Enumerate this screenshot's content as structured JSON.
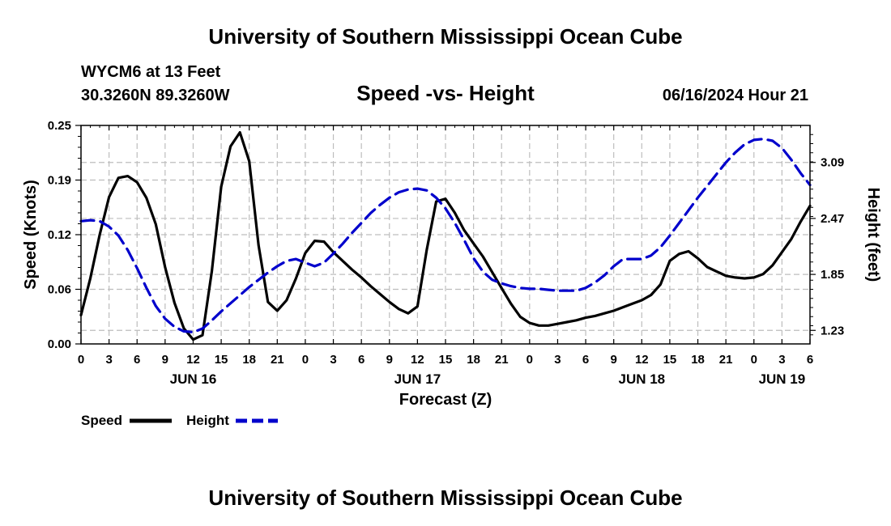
{
  "header": {
    "title": "University of Southern Mississippi Ocean Cube",
    "station": "WYCM6 at 13 Feet",
    "location": "30.3260N  89.3260W",
    "timestamp": "06/16/2024 Hour 21",
    "footer_title": "University of Southern Mississippi Ocean Cube"
  },
  "chart_data": {
    "type": "line",
    "title": "Speed -vs- Height",
    "xlabel": "Forecast (Z)",
    "ylabel": "Speed (Knots)",
    "y2label": "Height (feet)",
    "x_unit": "hours since JUN 16 00Z",
    "xlim": [
      0,
      78
    ],
    "ylim": [
      0,
      0.25
    ],
    "y2lim": [
      1.08,
      3.5
    ],
    "x_ticks": [
      0,
      3,
      6,
      9,
      12,
      15,
      18,
      21,
      24,
      27,
      30,
      33,
      36,
      39,
      42,
      45,
      48,
      51,
      54,
      57,
      60,
      63,
      66,
      69,
      72,
      75,
      78
    ],
    "x_tick_labels": [
      "0",
      "3",
      "6",
      "9",
      "12",
      "15",
      "18",
      "21",
      "0",
      "3",
      "6",
      "9",
      "12",
      "15",
      "18",
      "21",
      "0",
      "3",
      "6",
      "9",
      "12",
      "15",
      "18",
      "21",
      "0",
      "3",
      "6"
    ],
    "y_ticks": [
      0,
      0.0625,
      0.125,
      0.1875,
      0.25
    ],
    "y_tick_labels": [
      "0.00",
      "0.06",
      "0.12",
      "0.19",
      "0.25"
    ],
    "y2_ticks": [
      1.23,
      1.85,
      2.47,
      3.09
    ],
    "y2_tick_labels": [
      "1.23",
      "1.85",
      "2.47",
      "3.09"
    ],
    "day_labels": [
      {
        "x": 12,
        "label": "JUN 16"
      },
      {
        "x": 36,
        "label": "JUN 17"
      },
      {
        "x": 60,
        "label": "JUN 18"
      },
      {
        "x": 75,
        "label": "JUN 19"
      }
    ],
    "grid": true,
    "series": [
      {
        "name": "Speed",
        "axis": "left",
        "color": "#000000",
        "dash": "solid",
        "x": [
          0,
          1,
          2,
          3,
          4,
          5,
          6,
          7,
          8,
          9,
          10,
          11,
          12,
          13,
          14,
          15,
          16,
          17,
          18,
          19,
          20,
          21,
          22,
          23,
          24,
          25,
          26,
          27,
          28,
          29,
          30,
          31,
          32,
          33,
          34,
          35,
          36,
          37,
          38,
          39,
          40,
          41,
          42,
          43,
          44,
          45,
          46,
          47,
          48,
          49,
          50,
          51,
          52,
          53,
          54,
          55,
          56,
          57,
          58,
          59,
          60,
          61,
          62,
          63,
          64,
          65,
          66,
          67,
          68,
          69,
          70,
          71,
          72,
          73,
          74,
          75,
          76,
          77,
          78
        ],
        "values": [
          0.033,
          0.075,
          0.125,
          0.168,
          0.19,
          0.192,
          0.185,
          0.167,
          0.137,
          0.088,
          0.047,
          0.018,
          0.005,
          0.01,
          0.083,
          0.18,
          0.226,
          0.242,
          0.209,
          0.113,
          0.048,
          0.038,
          0.05,
          0.075,
          0.104,
          0.118,
          0.117,
          0.105,
          0.095,
          0.085,
          0.076,
          0.066,
          0.057,
          0.048,
          0.04,
          0.035,
          0.043,
          0.108,
          0.163,
          0.166,
          0.15,
          0.13,
          0.115,
          0.1,
          0.082,
          0.064,
          0.046,
          0.031,
          0.024,
          0.021,
          0.021,
          0.023,
          0.025,
          0.027,
          0.03,
          0.032,
          0.035,
          0.038,
          0.042,
          0.046,
          0.05,
          0.056,
          0.068,
          0.095,
          0.103,
          0.106,
          0.098,
          0.088,
          0.083,
          0.078,
          0.076,
          0.075,
          0.076,
          0.08,
          0.09,
          0.105,
          0.12,
          0.14,
          0.158
        ]
      },
      {
        "name": "Height",
        "axis": "right",
        "color": "#0000cc",
        "dash": "dashed",
        "x": [
          0,
          1,
          2,
          3,
          4,
          5,
          6,
          7,
          8,
          9,
          10,
          11,
          12,
          13,
          14,
          15,
          16,
          17,
          18,
          19,
          20,
          21,
          22,
          23,
          24,
          25,
          26,
          27,
          28,
          29,
          30,
          31,
          32,
          33,
          34,
          35,
          36,
          37,
          38,
          39,
          40,
          41,
          42,
          43,
          44,
          45,
          46,
          47,
          48,
          49,
          50,
          51,
          52,
          53,
          54,
          55,
          56,
          57,
          58,
          59,
          60,
          61,
          62,
          63,
          64,
          65,
          66,
          67,
          68,
          69,
          70,
          71,
          72,
          73,
          74,
          75,
          76,
          77,
          78
        ],
        "values": [
          2.44,
          2.45,
          2.44,
          2.38,
          2.28,
          2.12,
          1.92,
          1.7,
          1.5,
          1.36,
          1.27,
          1.22,
          1.21,
          1.25,
          1.34,
          1.44,
          1.53,
          1.62,
          1.71,
          1.79,
          1.87,
          1.94,
          2.0,
          2.02,
          1.98,
          1.94,
          1.98,
          2.08,
          2.19,
          2.31,
          2.42,
          2.53,
          2.62,
          2.7,
          2.76,
          2.79,
          2.8,
          2.78,
          2.7,
          2.58,
          2.42,
          2.23,
          2.03,
          1.88,
          1.79,
          1.75,
          1.72,
          1.7,
          1.69,
          1.69,
          1.68,
          1.67,
          1.67,
          1.67,
          1.7,
          1.76,
          1.84,
          1.94,
          2.02,
          2.02,
          2.02,
          2.06,
          2.15,
          2.28,
          2.42,
          2.56,
          2.7,
          2.83,
          2.96,
          3.09,
          3.2,
          3.29,
          3.34,
          3.35,
          3.33,
          3.25,
          3.12,
          2.97,
          2.84
        ]
      }
    ],
    "legend": [
      {
        "label": "Speed",
        "color": "#000000",
        "dash": "solid"
      },
      {
        "label": "Height",
        "color": "#0000cc",
        "dash": "dashed"
      }
    ]
  }
}
